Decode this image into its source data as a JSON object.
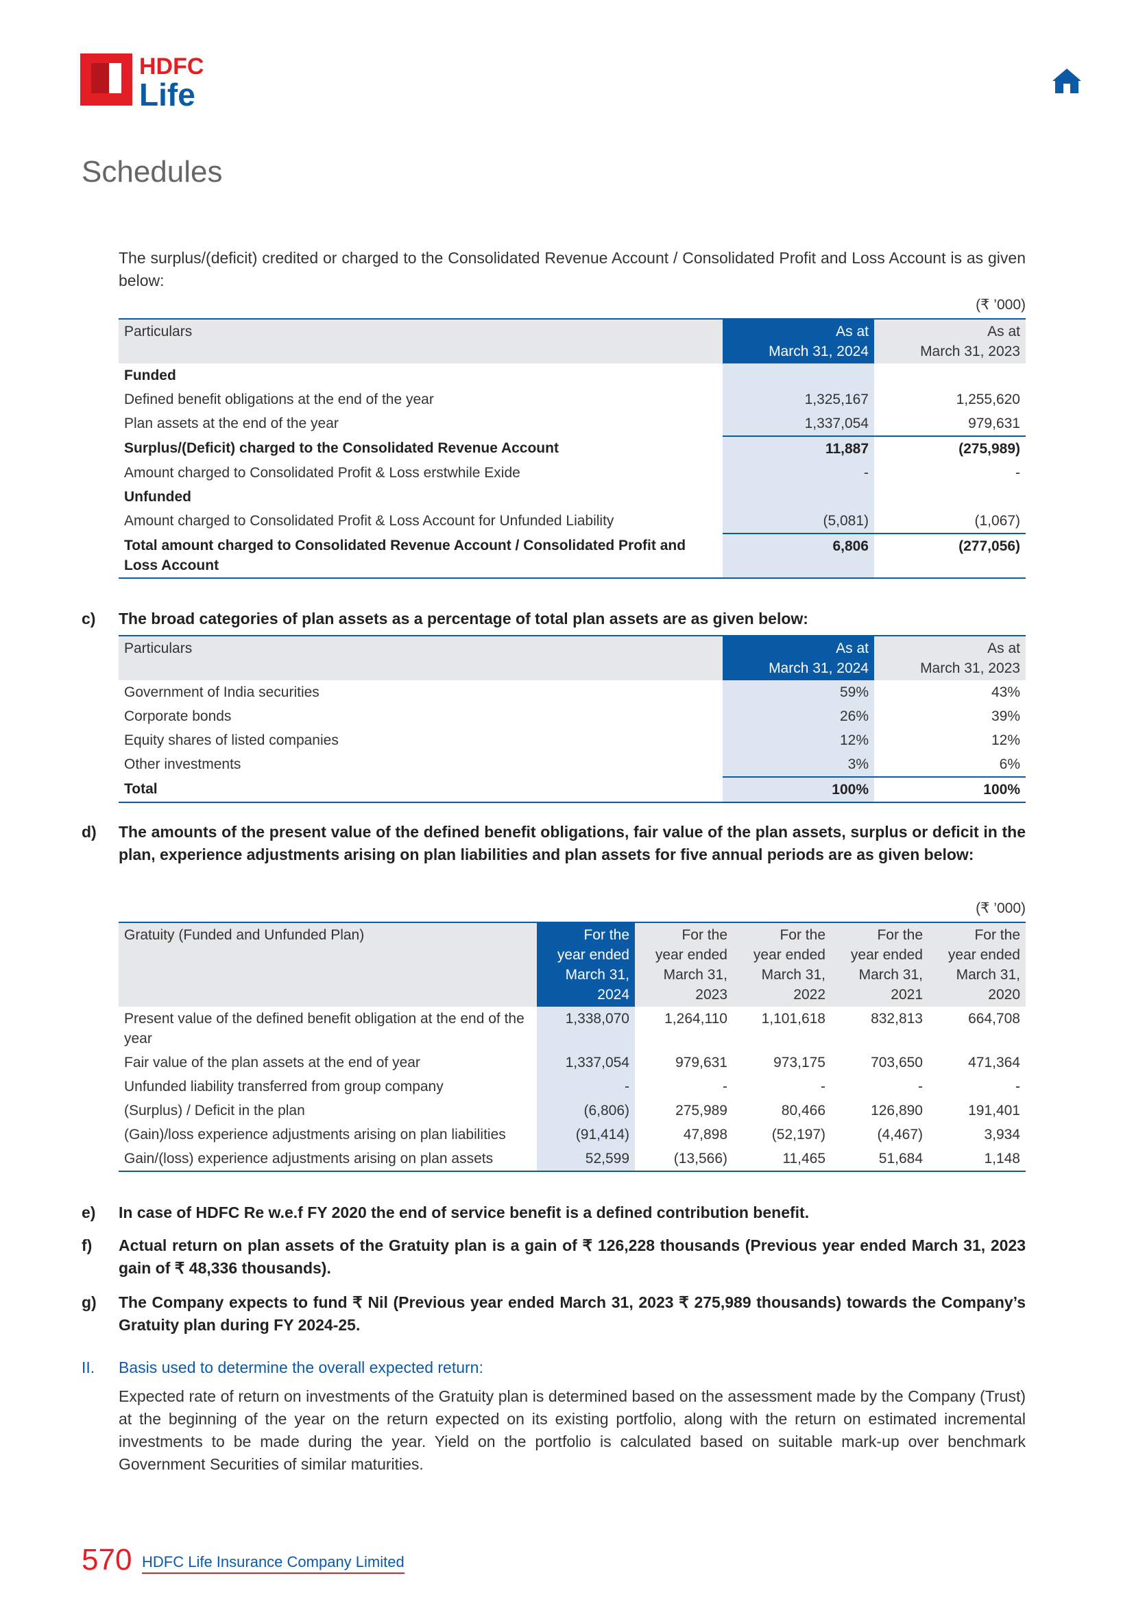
{
  "header": {
    "logo_top": "HDFC",
    "logo_bottom": "Life",
    "section": "Schedules"
  },
  "intro": "The surplus/(deficit) credited or charged to the Consolidated Revenue Account / Consolidated Profit and Loss Account is as given below:",
  "table1": {
    "unit": "(₹ ’000)",
    "columns": [
      "Particulars",
      "As at\nMarch 31, 2024",
      "As at\nMarch 31, 2023"
    ],
    "rows": [
      {
        "label": "Funded",
        "bold": true
      },
      {
        "label": "Defined benefit obligations at the end of the year",
        "values": [
          "1,325,167",
          "1,255,620"
        ]
      },
      {
        "label": "Plan assets at the end of the year",
        "values": [
          "1,337,054",
          "979,631"
        ]
      },
      {
        "label": "Surplus/(Deficit) charged to the Consolidated Revenue Account",
        "values": [
          "11,887",
          "(275,989)"
        ],
        "bold": true
      },
      {
        "label": "Amount charged to Consolidated Profit & Loss erstwhile Exide",
        "values": [
          "-",
          "-"
        ]
      },
      {
        "label": "Unfunded",
        "bold": true
      },
      {
        "label": "Amount charged to Consolidated Profit & Loss Account for Unfunded Liability",
        "values": [
          "(5,081)",
          "(1,067)"
        ]
      },
      {
        "label": "Total amount charged to Consolidated Revenue Account / Consolidated Profit and Loss Account",
        "values": [
          "6,806",
          "(277,056)"
        ],
        "bold": true
      }
    ]
  },
  "section_c": {
    "label": "c)",
    "text": "The broad categories of plan assets as a percentage of total plan assets are as given below:"
  },
  "table2": {
    "columns": [
      "Particulars",
      "As at\nMarch 31, 2024",
      "As at\nMarch 31, 2023"
    ],
    "rows": [
      {
        "label": "Government of India securities",
        "values": [
          "59%",
          "43%"
        ]
      },
      {
        "label": "Corporate bonds",
        "values": [
          "26%",
          "39%"
        ]
      },
      {
        "label": "Equity shares of listed companies",
        "values": [
          "12%",
          "12%"
        ]
      },
      {
        "label": "Other investments",
        "values": [
          "3%",
          "6%"
        ]
      },
      {
        "label": "Total",
        "values": [
          "100%",
          "100%"
        ],
        "bold": true
      }
    ]
  },
  "section_d": {
    "label": "d)",
    "text": "The amounts of the present value of the defined benefit obligations, fair value of the plan assets, surplus or deficit in the plan, experience adjustments arising on plan liabilities and plan assets for five annual periods are as given below:"
  },
  "table3": {
    "unit": "(₹ ’000)",
    "columns": [
      "Gratuity (Funded and Unfunded Plan)",
      "For the\nyear ended\nMarch 31,\n2024",
      "For the\nyear ended\nMarch 31,\n2023",
      "For the\nyear ended\nMarch 31,\n2022",
      "For the\nyear ended\nMarch 31,\n2021",
      "For the\nyear ended\nMarch 31,\n2020"
    ],
    "rows": [
      {
        "label": "Present value of the defined benefit obligation at the end of the year",
        "values": [
          "1,338,070",
          "1,264,110",
          "1,101,618",
          "832,813",
          "664,708"
        ]
      },
      {
        "label": "Fair value of the plan assets at the end of year",
        "values": [
          "1,337,054",
          "979,631",
          "973,175",
          "703,650",
          "471,364"
        ]
      },
      {
        "label": "Unfunded liability transferred from group company",
        "values": [
          "-",
          "-",
          "-",
          "-",
          "-"
        ]
      },
      {
        "label": "(Surplus) / Deficit in the plan",
        "values": [
          "(6,806)",
          "275,989",
          "80,466",
          "126,890",
          "191,401"
        ]
      },
      {
        "label": "(Gain)/loss experience adjustments arising on plan liabilities",
        "values": [
          "(91,414)",
          "47,898",
          "(52,197)",
          "(4,467)",
          "3,934"
        ]
      },
      {
        "label": "Gain/(loss) experience adjustments arising on plan assets",
        "values": [
          "52,599",
          "(13,566)",
          "11,465",
          "51,684",
          "1,148"
        ]
      }
    ]
  },
  "items": [
    {
      "label": "e)",
      "text": "In case of HDFC Re w.e.f FY 2020 the end of service benefit is a defined contribution benefit."
    },
    {
      "label": "f)",
      "text": "Actual return on plan assets of the Gratuity plan is a gain of ₹ 126,228 thousands (Previous year ended March 31, 2023 gain of ₹ 48,336 thousands)."
    },
    {
      "label": "g)",
      "text": "The Company expects to fund ₹ Nil (Previous year ended March 31, 2023 ₹ 275,989 thousands) towards the Company’s Gratuity plan during FY 2024-25."
    }
  ],
  "section_II": {
    "label": "II.",
    "heading": "Basis used to determine the overall expected return:",
    "text": "Expected rate of return on investments of the Gratuity plan is determined based on the assessment made by the Company (Trust) at the beginning of the year on the return expected on its existing portfolio, along with the return on estimated incremental investments to be made during the year. Yield on the portfolio is calculated based on suitable mark-up over benchmark Government Securities of similar maturities."
  },
  "footer": {
    "page": "570",
    "company": "HDFC Life Insurance Company Limited"
  }
}
